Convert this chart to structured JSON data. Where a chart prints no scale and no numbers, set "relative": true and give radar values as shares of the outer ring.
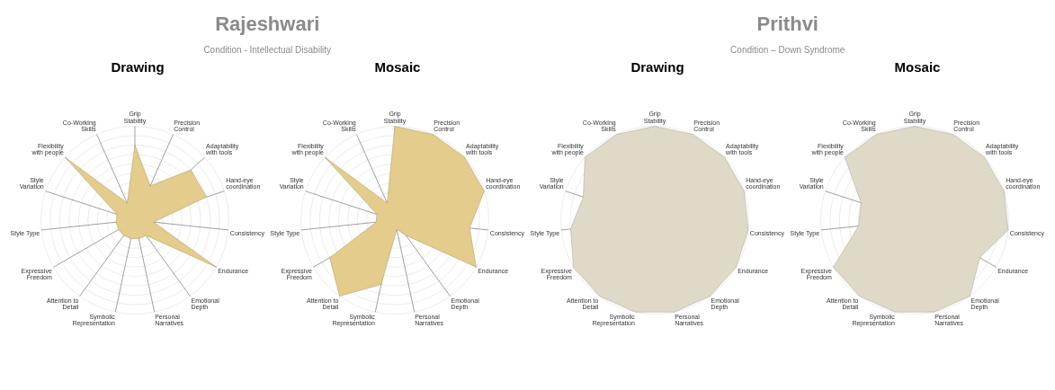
{
  "chart_data": [
    {
      "type": "other",
      "title": "Rajeshwari",
      "subtitle": "Condition - Intellectual Disability"
    },
    {
      "type": "radar",
      "title": "Drawing",
      "relative": true,
      "categories": [
        "Grip Stability",
        "Precision Control",
        "Adaptability with tools",
        "Hand-eye coordination",
        "Consistency",
        "Endurance",
        "Emotional Depth",
        "Personal Narratives",
        "Symbolic Representation",
        "Attention to Detail",
        "Expressive Freedom",
        "Style Type",
        "Style Variation",
        "Flexibility with people",
        "Co-Working Skills"
      ],
      "grid": true,
      "marker": "none",
      "series": [
        {
          "color": "#e3cc8c",
          "values": [
            0.8,
            0.4,
            0.8,
            0.8,
            0.2,
            1.0,
            0.2,
            0.2,
            0.2,
            0.2,
            0.2,
            0.2,
            0.2,
            1.0,
            0.2
          ]
        }
      ]
    },
    {
      "type": "radar",
      "title": "Mosaic",
      "relative": true,
      "categories": [
        "Grip Stability",
        "Precision Control",
        "Adaptability with tools",
        "Hand-eye coordination",
        "Consistency",
        "Endurance",
        "Emotional Depth",
        "Personal Narratives",
        "Symbolic Representation",
        "Attention to Detail",
        "Expressive Freedom",
        "Style Type",
        "Style Variation",
        "Flexibility with people",
        "Co-Working Skills"
      ],
      "grid": true,
      "marker": "none",
      "series": [
        {
          "color": "#e3cc8c",
          "values": [
            1.0,
            1.0,
            1.0,
            1.0,
            0.8,
            1.0,
            0.2,
            0.1,
            0.7,
            1.0,
            0.8,
            0.2,
            0.2,
            1.0,
            0.2
          ]
        }
      ]
    },
    {
      "type": "other",
      "title": "Prithvi",
      "subtitle": "Condition – Down Syndrome"
    },
    {
      "type": "radar",
      "title": "Drawing",
      "relative": true,
      "categories": [
        "Grip Stability",
        "Precision Control",
        "Adaptability with tools",
        "Hand-eye coordination",
        "Consistency",
        "Endurance",
        "Emotional Depth",
        "Personal Narratives",
        "Symbolic Representation",
        "Attention to Detail",
        "Expressive Freedom",
        "Style Type",
        "Style Variation",
        "Flexibility with people",
        "Co-Working Skills"
      ],
      "grid": true,
      "marker": "none",
      "series": [
        {
          "color": "#dedac7",
          "values": [
            1.0,
            1.0,
            1.0,
            1.0,
            1.0,
            1.0,
            1.0,
            1.0,
            1.0,
            1.0,
            1.0,
            0.9,
            0.8,
            1.0,
            1.0
          ]
        }
      ]
    },
    {
      "type": "radar",
      "title": "Mosaic",
      "relative": true,
      "categories": [
        "Grip Stability",
        "Precision Control",
        "Adaptability with tools",
        "Hand-eye coordination",
        "Consistency",
        "Endurance",
        "Emotional Depth",
        "Personal Narratives",
        "Symbolic Representation",
        "Attention to Detail",
        "Expressive Freedom",
        "Style Type",
        "Style Variation",
        "Flexibility with people",
        "Co-Working Skills"
      ],
      "grid": true,
      "marker": "none",
      "series": [
        {
          "color": "#dedac7",
          "values": [
            1.0,
            1.0,
            1.0,
            1.0,
            1.0,
            0.8,
            1.0,
            1.0,
            1.0,
            1.0,
            1.0,
            0.6,
            0.6,
            1.0,
            1.0
          ]
        }
      ]
    }
  ]
}
